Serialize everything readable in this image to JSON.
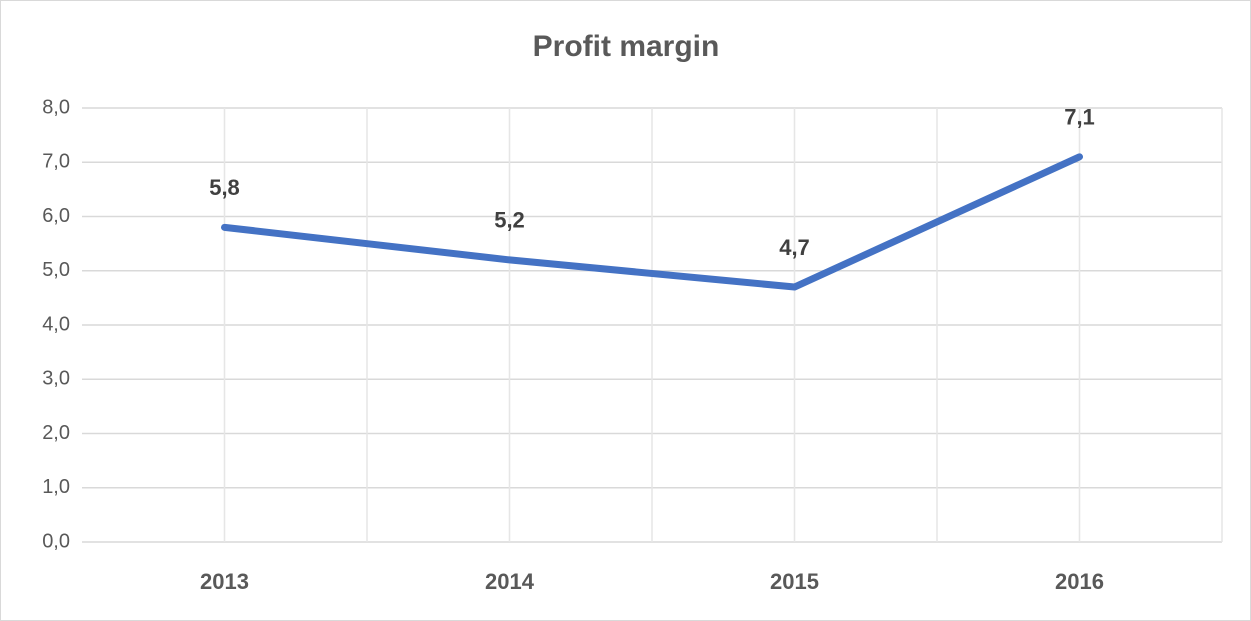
{
  "chart_data": {
    "type": "line",
    "title": "Profit margin",
    "categories": [
      "2013",
      "2014",
      "2015",
      "2016"
    ],
    "series": [
      {
        "name": "Profit margin",
        "color": "#4472c4",
        "values": [
          5.8,
          5.2,
          4.7,
          7.1
        ],
        "value_labels": [
          "5,8",
          "5,2",
          "4,7",
          "7,1"
        ]
      }
    ],
    "ylim": [
      0,
      8
    ],
    "yticks": [
      {
        "value": 0,
        "label": "0,0"
      },
      {
        "value": 1,
        "label": "1,0"
      },
      {
        "value": 2,
        "label": "2,0"
      },
      {
        "value": 3,
        "label": "3,0"
      },
      {
        "value": 4,
        "label": "4,0"
      },
      {
        "value": 5,
        "label": "5,0"
      },
      {
        "value": 6,
        "label": "6,0"
      },
      {
        "value": 7,
        "label": "7,0"
      },
      {
        "value": 8,
        "label": "8,0"
      }
    ],
    "grid": true
  }
}
